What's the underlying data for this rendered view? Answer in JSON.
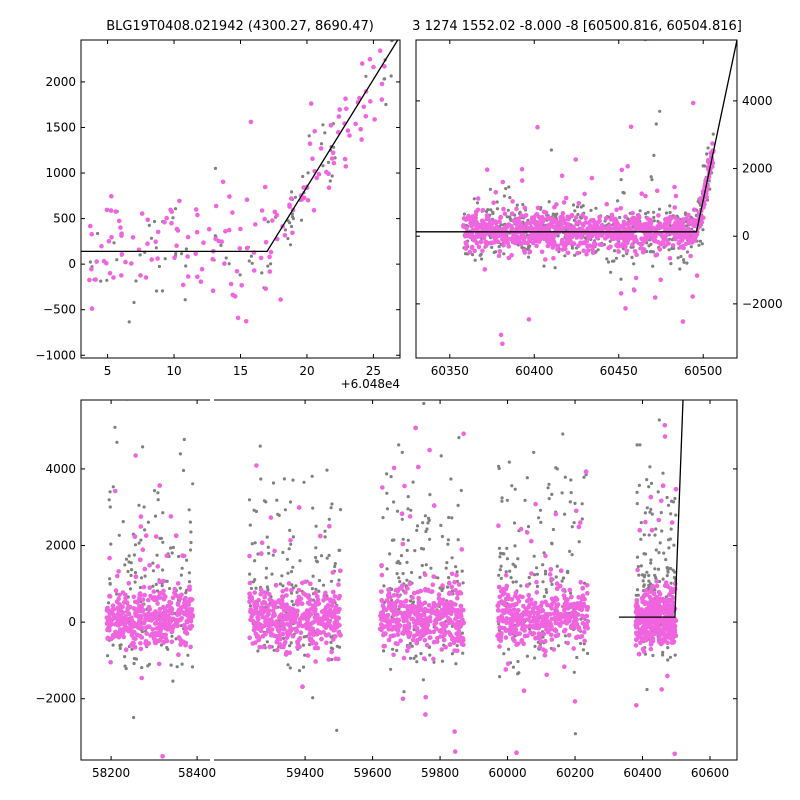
{
  "chart_data": [
    {
      "id": "zoom",
      "type": "scatter",
      "title": "BLG19T0408.021942 (4300.27, 8690.47)",
      "x_offset_label": "+6.048e4",
      "xlim": [
        3,
        27
      ],
      "ylim": [
        -1030,
        2460
      ],
      "xticks": [
        5,
        10,
        15,
        20,
        25
      ],
      "yticks": [
        -1000,
        -500,
        0,
        500,
        1000,
        1500,
        2000
      ],
      "y_axis_side": "left",
      "colors": {
        "series_a": "#f064e0",
        "series_b": "#808080",
        "model": "#000000"
      },
      "model_line": [
        [
          3,
          140
        ],
        [
          17,
          140
        ],
        [
          27,
          2500
        ]
      ],
      "point_counts": {
        "series_a": 160,
        "series_b": 90
      }
    },
    {
      "id": "recent",
      "type": "scatter",
      "title": "3 1274 1552.02 -8.000 -8 [60500.816, 60504.816]",
      "xlim": [
        60330,
        60520
      ],
      "ylim": [
        -3600,
        5800
      ],
      "xticks": [
        60350,
        60400,
        60450,
        60500
      ],
      "yticks": [
        -2000,
        0,
        2000,
        4000
      ],
      "y_axis_side": "right",
      "colors": {
        "series_a": "#f064e0",
        "series_b": "#808080",
        "model": "#000000"
      },
      "model_line": [
        [
          60330,
          130
        ],
        [
          60496,
          130
        ],
        [
          60520,
          5800
        ]
      ],
      "point_counts": {
        "series_a": 950,
        "series_b": 500
      }
    },
    {
      "id": "full",
      "type": "scatter",
      "broken_x_axis": true,
      "segments": [
        {
          "xlim": [
            58130,
            58430
          ],
          "xticks": [
            58200,
            58400
          ]
        },
        {
          "xlim": [
            59130,
            60680
          ],
          "xticks": [
            59400,
            59600,
            59800,
            60000,
            60200,
            60400,
            60600
          ]
        }
      ],
      "ylim": [
        -3600,
        5800
      ],
      "yticks": [
        -2000,
        0,
        2000,
        4000
      ],
      "y_axis_side": "left",
      "colors": {
        "series_a": "#f064e0",
        "series_b": "#808080",
        "model": "#000000"
      },
      "model_line": [
        [
          60330,
          130
        ],
        [
          60496,
          130
        ],
        [
          60520,
          5800
        ]
      ],
      "seasons": [
        {
          "center": 58290,
          "half_width": 100
        },
        {
          "center": 59370,
          "half_width": 135
        },
        {
          "center": 59745,
          "half_width": 125
        },
        {
          "center": 60105,
          "half_width": 135
        },
        {
          "center": 60440,
          "half_width": 60
        }
      ],
      "point_counts": {
        "series_a": 2600,
        "series_b": 900
      }
    }
  ]
}
